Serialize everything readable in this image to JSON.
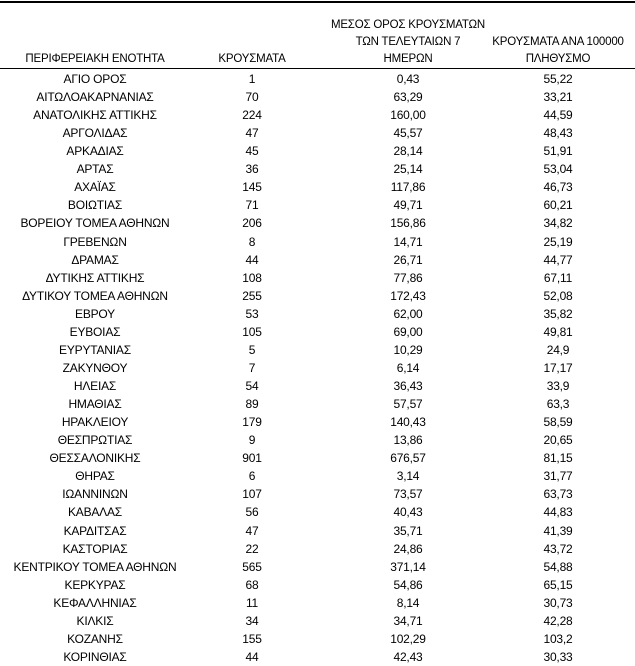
{
  "headers": {
    "region": "ΠΕΡΙΦΕΡΕΙΑΚΗ ΕΝΟΤΗΤΑ",
    "cases": "ΚΡΟΥΣΜΑΤΑ",
    "avg_line1": "ΜΕΣΟΣ ΟΡΟΣ ΚΡΟΥΣΜΑΤΩΝ",
    "avg_line2": "ΤΩΝ ΤΕΛΕΥΤΑΙΩΝ 7",
    "avg_line3": "ΗΜΕΡΩΝ",
    "per100k_line1": "ΚΡΟΥΣΜΑΤΑ ΑΝΑ 100000",
    "per100k_line2": "ΠΛΗΘΥΣΜΟ"
  },
  "rows": [
    [
      "ΑΓΙΟ ΟΡΟΣ",
      "1",
      "0,43",
      "55,22"
    ],
    [
      "ΑΙΤΩΛΟΑΚΑΡΝΑΝΙΑΣ",
      "70",
      "63,29",
      "33,21"
    ],
    [
      "ΑΝΑΤΟΛΙΚΗΣ ΑΤΤΙΚΗΣ",
      "224",
      "160,00",
      "44,59"
    ],
    [
      "ΑΡΓΟΛΙΔΑΣ",
      "47",
      "45,57",
      "48,43"
    ],
    [
      "ΑΡΚΑΔΙΑΣ",
      "45",
      "28,14",
      "51,91"
    ],
    [
      "ΑΡΤΑΣ",
      "36",
      "25,14",
      "53,04"
    ],
    [
      "ΑΧΑΪΑΣ",
      "145",
      "117,86",
      "46,73"
    ],
    [
      "ΒΟΙΩΤΙΑΣ",
      "71",
      "49,71",
      "60,21"
    ],
    [
      "ΒΟΡΕΙΟΥ ΤΟΜΕΑ ΑΘΗΝΩΝ",
      "206",
      "156,86",
      "34,82"
    ],
    [
      "ΓΡΕΒΕΝΩΝ",
      "8",
      "14,71",
      "25,19"
    ],
    [
      "ΔΡΑΜΑΣ",
      "44",
      "26,71",
      "44,77"
    ],
    [
      "ΔΥΤΙΚΗΣ ΑΤΤΙΚΗΣ",
      "108",
      "77,86",
      "67,11"
    ],
    [
      "ΔΥΤΙΚΟΥ ΤΟΜΕΑ ΑΘΗΝΩΝ",
      "255",
      "172,43",
      "52,08"
    ],
    [
      "ΕΒΡΟΥ",
      "53",
      "62,00",
      "35,82"
    ],
    [
      "ΕΥΒΟΙΑΣ",
      "105",
      "69,00",
      "49,81"
    ],
    [
      "ΕΥΡΥΤΑΝΙΑΣ",
      "5",
      "10,29",
      "24,9"
    ],
    [
      "ΖΑΚΥΝΘΟΥ",
      "7",
      "6,14",
      "17,17"
    ],
    [
      "ΗΛΕΙΑΣ",
      "54",
      "36,43",
      "33,9"
    ],
    [
      "ΗΜΑΘΙΑΣ",
      "89",
      "57,57",
      "63,3"
    ],
    [
      "ΗΡΑΚΛΕΙΟΥ",
      "179",
      "140,43",
      "58,59"
    ],
    [
      "ΘΕΣΠΡΩΤΙΑΣ",
      "9",
      "13,86",
      "20,65"
    ],
    [
      "ΘΕΣΣΑΛΟΝΙΚΗΣ",
      "901",
      "676,57",
      "81,15"
    ],
    [
      "ΘΗΡΑΣ",
      "6",
      "3,14",
      "31,77"
    ],
    [
      "ΙΩΑΝΝΙΝΩΝ",
      "107",
      "73,57",
      "63,73"
    ],
    [
      "ΚΑΒΑΛΑΣ",
      "56",
      "40,43",
      "44,83"
    ],
    [
      "ΚΑΡΔΙΤΣΑΣ",
      "47",
      "35,71",
      "41,39"
    ],
    [
      "ΚΑΣΤΟΡΙΑΣ",
      "22",
      "24,86",
      "43,72"
    ],
    [
      "ΚΕΝΤΡΙΚΟΥ ΤΟΜΕΑ ΑΘΗΝΩΝ",
      "565",
      "371,14",
      "54,88"
    ],
    [
      "ΚΕΡΚΥΡΑΣ",
      "68",
      "54,86",
      "65,15"
    ],
    [
      "ΚΕΦΑΛΛΗΝΙΑΣ",
      "11",
      "8,14",
      "30,73"
    ],
    [
      "ΚΙΛΚΙΣ",
      "34",
      "34,71",
      "42,28"
    ],
    [
      "ΚΟΖΑΝΗΣ",
      "155",
      "102,29",
      "103,2"
    ],
    [
      "ΚΟΡΙΝΘΙΑΣ",
      "44",
      "42,43",
      "30,33"
    ]
  ]
}
